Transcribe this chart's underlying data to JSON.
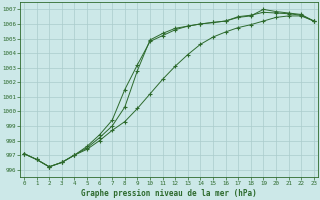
{
  "title": "Graphe pression niveau de la mer (hPa)",
  "bg_color": "#cce8e8",
  "grid_color": "#aacccc",
  "line_color": "#2d6a2d",
  "xlim": [
    -0.3,
    23.3
  ],
  "ylim": [
    995.5,
    1007.5
  ],
  "yticks": [
    996,
    997,
    998,
    999,
    1000,
    1001,
    1002,
    1003,
    1004,
    1005,
    1006,
    1007
  ],
  "xticks": [
    0,
    1,
    2,
    3,
    4,
    5,
    6,
    7,
    8,
    9,
    10,
    11,
    12,
    13,
    14,
    15,
    16,
    17,
    18,
    19,
    20,
    21,
    22,
    23
  ],
  "line1_x": [
    0,
    1,
    2,
    3,
    4,
    5,
    6,
    7,
    8,
    9,
    10,
    11,
    12,
    13,
    14,
    15,
    16,
    17,
    18,
    19,
    20,
    21,
    22,
    23
  ],
  "line1_y": [
    997.1,
    996.7,
    996.2,
    996.5,
    997.0,
    997.5,
    998.2,
    999.0,
    1000.3,
    1002.8,
    1004.9,
    1005.35,
    1005.7,
    1005.85,
    1006.0,
    1006.1,
    1006.2,
    1006.5,
    1006.6,
    1006.8,
    1006.75,
    1006.7,
    1006.6,
    1006.2
  ],
  "line2_x": [
    0,
    1,
    2,
    3,
    4,
    5,
    6,
    7,
    8,
    9,
    10,
    11,
    12,
    13,
    14,
    15,
    16,
    17,
    18,
    19,
    20,
    21,
    22,
    23
  ],
  "line2_y": [
    997.1,
    996.7,
    996.2,
    996.5,
    997.0,
    997.6,
    998.4,
    999.4,
    1001.5,
    1003.2,
    1004.8,
    1005.2,
    1005.6,
    1005.85,
    1006.0,
    1006.1,
    1006.2,
    1006.45,
    1006.55,
    1007.0,
    1006.85,
    1006.75,
    1006.65,
    1006.2
  ],
  "line3_x": [
    0,
    1,
    2,
    3,
    4,
    5,
    6,
    7,
    8,
    9,
    10,
    11,
    12,
    13,
    14,
    15,
    16,
    17,
    18,
    19,
    20,
    21,
    22,
    23
  ],
  "line3_y": [
    997.1,
    996.7,
    996.2,
    996.5,
    997.0,
    997.4,
    998.0,
    998.7,
    999.3,
    1000.2,
    1001.2,
    1002.2,
    1003.1,
    1003.9,
    1004.6,
    1005.1,
    1005.45,
    1005.75,
    1005.95,
    1006.2,
    1006.45,
    1006.55,
    1006.55,
    1006.2
  ]
}
